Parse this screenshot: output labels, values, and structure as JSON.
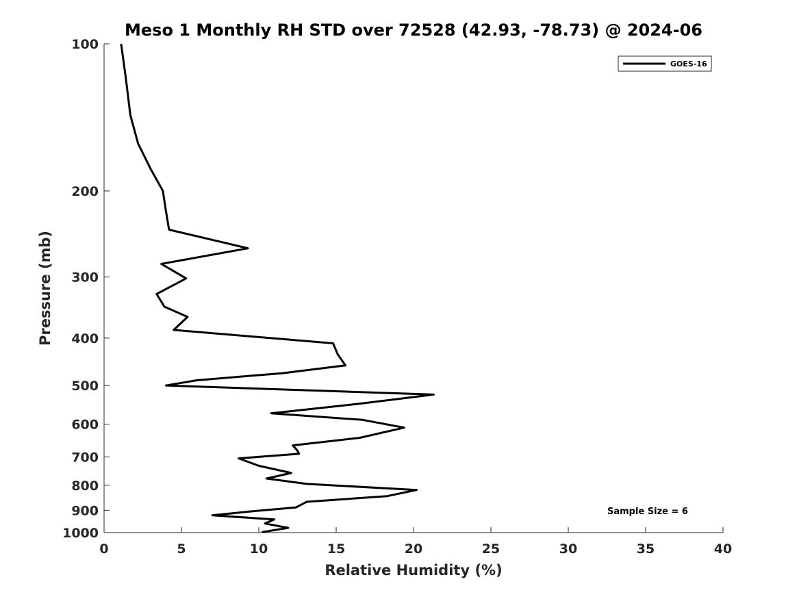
{
  "chart_data": {
    "type": "line",
    "title": "Meso 1 Monthly RH STD over 72528 (42.93, -78.73) @ 2024-06",
    "xlabel": "Relative Humidity (%)",
    "ylabel": "Pressure (mb)",
    "xlim": [
      0,
      40
    ],
    "ylim": [
      100,
      1000
    ],
    "y_scale": "log",
    "y_reversed": true,
    "x_ticks": [
      0,
      5,
      10,
      15,
      20,
      25,
      30,
      35,
      40
    ],
    "y_ticks": [
      100,
      200,
      300,
      400,
      500,
      600,
      700,
      800,
      900,
      1000
    ],
    "grid": false,
    "legend_position": "top-right",
    "series": [
      {
        "name": "GOES-16",
        "color": "#000000",
        "x": [
          1.1,
          1.4,
          1.7,
          2.2,
          3.0,
          3.8,
          4.0,
          4.2,
          9.3,
          3.7,
          5.3,
          3.4,
          3.9,
          5.4,
          4.5,
          14.8,
          15.1,
          15.6,
          11.5,
          6.0,
          4.0,
          21.3,
          16.5,
          10.8,
          16.7,
          19.4,
          16.5,
          12.2,
          12.5,
          12.6,
          8.7,
          10.0,
          12.1,
          10.5,
          13.1,
          20.2,
          18.3,
          13.1,
          12.4,
          9.5,
          7.0,
          11.0,
          10.4,
          11.9,
          10.2
        ],
        "y": [
          100,
          117,
          140,
          160,
          180,
          200,
          220,
          240,
          262,
          282,
          302,
          325,
          345,
          362,
          385,
          410,
          432,
          455,
          472,
          488,
          500,
          522,
          545,
          570,
          588,
          610,
          640,
          663,
          680,
          690,
          705,
          730,
          755,
          775,
          795,
          818,
          842,
          865,
          888,
          905,
          922,
          940,
          958,
          978,
          998
        ]
      }
    ],
    "annotations": [
      "Sample Size = 6"
    ]
  }
}
